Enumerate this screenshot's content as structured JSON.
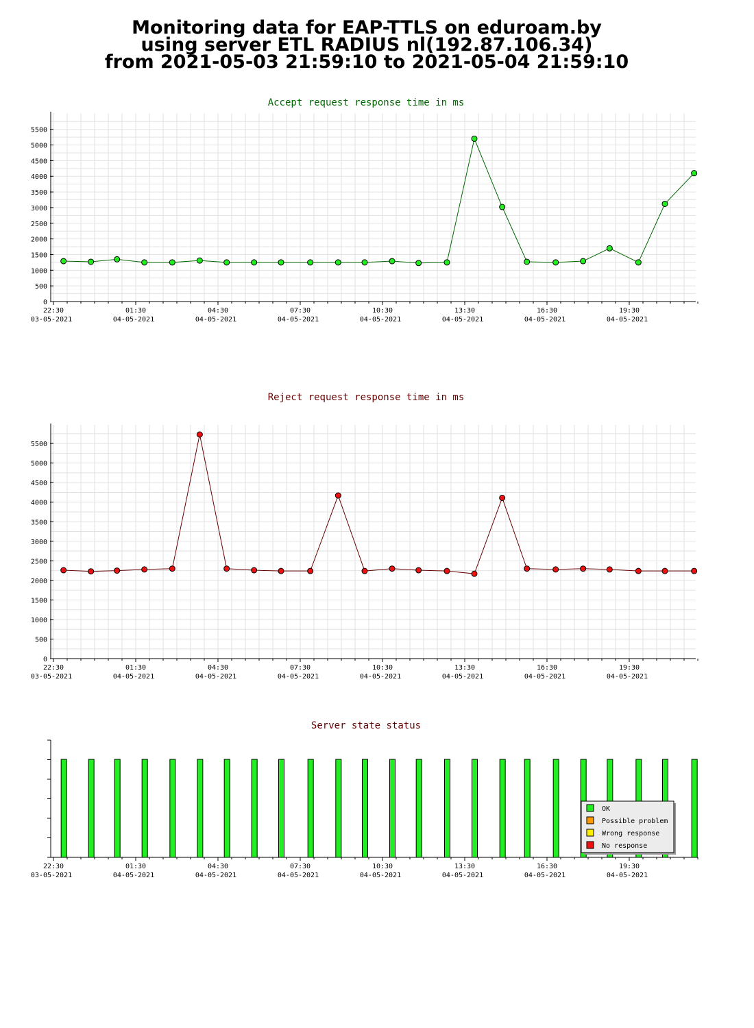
{
  "header": {
    "line1": "Monitoring data for EAP-TTLS on eduroam.by",
    "line2": "using server ETL RADIUS nl(192.87.106.34)",
    "line3": "from 2021-05-03 21:59:10 to 2021-05-04 21:59:10"
  },
  "colors": {
    "accept_title": "#006600",
    "accept_line": "#006600",
    "accept_marker": "#22ee22",
    "reject_title": "#660000",
    "reject_line": "#660000",
    "reject_marker": "#ee1111",
    "status_title": "#660000",
    "status_ok": "#22ee22",
    "status_possible": "#ff9900",
    "status_wrong": "#ffee00",
    "status_none": "#ee1111"
  },
  "x_ticks": [
    {
      "time": "22:30",
      "date": "03-05-2021"
    },
    {
      "time": "01:30",
      "date": "04-05-2021"
    },
    {
      "time": "04:30",
      "date": "04-05-2021"
    },
    {
      "time": "07:30",
      "date": "04-05-2021"
    },
    {
      "time": "10:30",
      "date": "04-05-2021"
    },
    {
      "time": "13:30",
      "date": "04-05-2021"
    },
    {
      "time": "16:30",
      "date": "04-05-2021"
    },
    {
      "time": "19:30",
      "date": "04-05-2021"
    }
  ],
  "chart_data": [
    {
      "type": "line",
      "title": "Accept request response time in ms",
      "xlabel": "",
      "ylabel": "",
      "xlim": [
        "2021-05-03 22:30",
        "2021-05-04 21:52"
      ],
      "ylim": [
        0,
        5800
      ],
      "yticks": [
        0,
        500,
        1000,
        1500,
        2000,
        2500,
        3000,
        3500,
        4000,
        4500,
        5000,
        5500
      ],
      "grid": true,
      "x": [
        "2021-05-03 22:52",
        "2021-05-03 23:52",
        "2021-05-04 00:49",
        "2021-05-04 01:49",
        "2021-05-04 02:50",
        "2021-05-04 03:50",
        "2021-05-04 04:49",
        "2021-05-04 05:49",
        "2021-05-04 06:48",
        "2021-05-04 07:52",
        "2021-05-04 08:53",
        "2021-05-04 09:51",
        "2021-05-04 10:51",
        "2021-05-04 11:49",
        "2021-05-04 12:51",
        "2021-05-04 13:51",
        "2021-05-04 14:52",
        "2021-05-04 15:46",
        "2021-05-04 16:49",
        "2021-05-04 17:49",
        "2021-05-04 18:47",
        "2021-05-04 19:50",
        "2021-05-04 20:48",
        "2021-05-04 21:52"
      ],
      "values": [
        1290,
        1270,
        1350,
        1250,
        1250,
        1310,
        1250,
        1250,
        1250,
        1250,
        1250,
        1250,
        1290,
        1230,
        1250,
        5200,
        3020,
        1270,
        1250,
        1290,
        1700,
        1250,
        3120,
        4100
      ]
    },
    {
      "type": "line",
      "title": "Reject request response time in ms",
      "xlabel": "",
      "ylabel": "",
      "xlim": [
        "2021-05-03 22:30",
        "2021-05-04 21:52"
      ],
      "ylim": [
        0,
        5800
      ],
      "yticks": [
        0,
        500,
        1000,
        1500,
        2000,
        2500,
        3000,
        3500,
        4000,
        4500,
        5000,
        5500
      ],
      "grid": true,
      "x": [
        "2021-05-03 22:52",
        "2021-05-03 23:52",
        "2021-05-04 00:49",
        "2021-05-04 01:49",
        "2021-05-04 02:50",
        "2021-05-04 03:50",
        "2021-05-04 04:49",
        "2021-05-04 05:49",
        "2021-05-04 06:48",
        "2021-05-04 07:52",
        "2021-05-04 08:53",
        "2021-05-04 09:51",
        "2021-05-04 10:51",
        "2021-05-04 11:49",
        "2021-05-04 12:51",
        "2021-05-04 13:51",
        "2021-05-04 14:52",
        "2021-05-04 15:46",
        "2021-05-04 16:49",
        "2021-05-04 17:49",
        "2021-05-04 18:47",
        "2021-05-04 19:50",
        "2021-05-04 20:48",
        "2021-05-04 21:52"
      ],
      "values": [
        2260,
        2230,
        2250,
        2280,
        2300,
        5730,
        2300,
        2260,
        2240,
        2240,
        4170,
        2240,
        2300,
        2260,
        2240,
        2170,
        4110,
        2300,
        2280,
        2300,
        2280,
        2240,
        2240,
        2240
      ]
    },
    {
      "type": "bar",
      "title": "Server state status",
      "xlabel": "",
      "ylabel": "",
      "xlim": [
        "2021-05-03 22:30",
        "2021-05-04 21:52"
      ],
      "ylim": [
        0,
        1.2
      ],
      "grid": false,
      "legend_position": "bottom-right",
      "legend": [
        "OK",
        "Possible problem",
        "Wrong response",
        "No response"
      ],
      "x": [
        "2021-05-03 22:52",
        "2021-05-03 23:52",
        "2021-05-04 00:49",
        "2021-05-04 01:49",
        "2021-05-04 02:50",
        "2021-05-04 03:50",
        "2021-05-04 04:49",
        "2021-05-04 05:49",
        "2021-05-04 06:48",
        "2021-05-04 07:52",
        "2021-05-04 08:53",
        "2021-05-04 09:51",
        "2021-05-04 10:51",
        "2021-05-04 11:49",
        "2021-05-04 12:51",
        "2021-05-04 13:51",
        "2021-05-04 14:52",
        "2021-05-04 15:46",
        "2021-05-04 16:49",
        "2021-05-04 17:49",
        "2021-05-04 18:47",
        "2021-05-04 19:50",
        "2021-05-04 20:48",
        "2021-05-04 21:52"
      ],
      "values": [
        1,
        1,
        1,
        1,
        1,
        1,
        1,
        1,
        1,
        1,
        1,
        1,
        1,
        1,
        1,
        1,
        1,
        1,
        1,
        1,
        1,
        1,
        1,
        1
      ],
      "status": [
        "OK",
        "OK",
        "OK",
        "OK",
        "OK",
        "OK",
        "OK",
        "OK",
        "OK",
        "OK",
        "OK",
        "OK",
        "OK",
        "OK",
        "OK",
        "OK",
        "OK",
        "OK",
        "OK",
        "OK",
        "OK",
        "OK",
        "OK",
        "OK"
      ]
    }
  ]
}
